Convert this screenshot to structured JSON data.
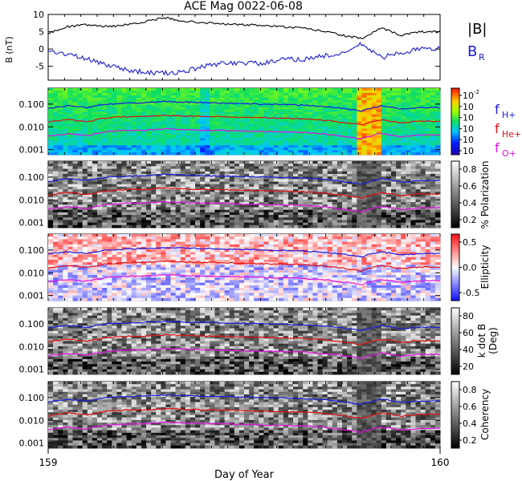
{
  "title": "ACE Mag 0022-06-08",
  "colors": {
    "black": "#000000",
    "blue": "#1a1adc",
    "red": "#e01010",
    "magenta": "#e010e0"
  },
  "chart_data": [
    {
      "type": "line",
      "panel": "magnetic-field",
      "ylabel": "B (nT)",
      "ylim": [
        -9,
        10
      ],
      "yticks": [
        10,
        5,
        0,
        -5
      ],
      "xlim": [
        159,
        160
      ],
      "grid": false,
      "legend": [
        {
          "label": "|B|",
          "color": "#000000"
        },
        {
          "label": "B",
          "subscript": "R",
          "color": "#1a1adc"
        }
      ],
      "series": [
        {
          "name": "|B|",
          "x": [
            159.0,
            159.05,
            159.1,
            159.15,
            159.2,
            159.25,
            159.3,
            159.35,
            159.4,
            159.45,
            159.5,
            159.55,
            159.6,
            159.65,
            159.7,
            159.75,
            159.8,
            159.85,
            159.9,
            159.95,
            160.0
          ],
          "values": [
            4.5,
            6.5,
            7.0,
            6.5,
            7.0,
            8.0,
            9.0,
            8.0,
            7.6,
            7.2,
            7.0,
            6.8,
            6.4,
            6.0,
            5.2,
            4.0,
            3.0,
            6.0,
            4.0,
            5.0,
            5.0
          ]
        },
        {
          "name": "B_R",
          "x": [
            159.0,
            159.05,
            159.1,
            159.15,
            159.2,
            159.25,
            159.3,
            159.35,
            159.4,
            159.45,
            159.5,
            159.55,
            159.6,
            159.65,
            159.7,
            159.75,
            159.8,
            159.85,
            159.9,
            159.95,
            160.0
          ],
          "values": [
            -0.5,
            -1.5,
            -3.0,
            -4.5,
            -6.0,
            -6.8,
            -7.0,
            -6.5,
            -5.0,
            -4.0,
            -4.0,
            -4.2,
            -3.0,
            -3.0,
            -2.0,
            -1.5,
            1.5,
            -2.5,
            -1.0,
            0.0,
            0.0
          ]
        }
      ]
    },
    {
      "type": "heatmap",
      "panel": "power",
      "yscale": "log",
      "ylim": [
        0.0006,
        0.5
      ],
      "yticks": [
        "0.100",
        "0.010",
        "0.001"
      ],
      "colorbar_ticks": [
        "10",
        "10",
        "10",
        "10",
        "10",
        "10"
      ],
      "colorbar_top_label": "10",
      "colorbar_exp": "-2",
      "colormap": "rainbow",
      "legend": [
        {
          "label": "f",
          "subscript": "H+",
          "color": "#1a1adc"
        },
        {
          "label": "f",
          "subscript": "He+",
          "color": "#e01010"
        },
        {
          "label": "f",
          "subscript": "O+",
          "color": "#e010e0"
        }
      ]
    },
    {
      "type": "heatmap",
      "panel": "polarization",
      "yscale": "log",
      "yticks": [
        "0.100",
        "0.010",
        "0.001"
      ],
      "colorbar_label": "% Polarization",
      "colorbar_ticks": [
        "0.8",
        "0.6",
        "0.4",
        "0.2"
      ],
      "colormap": "gray"
    },
    {
      "type": "heatmap",
      "panel": "ellipticity",
      "yscale": "log",
      "yticks": [
        "0.100",
        "0.010",
        "0.001"
      ],
      "colorbar_label": "Ellipticity",
      "colorbar_ticks": [
        "0.5",
        "0.0",
        "-0.5"
      ],
      "colormap": "blue-white-red"
    },
    {
      "type": "heatmap",
      "panel": "wave-normal-angle",
      "yscale": "log",
      "yticks": [
        "0.100",
        "0.010",
        "0.001"
      ],
      "colorbar_label": "k dot B (Deg)",
      "colorbar_ticks": [
        "80",
        "60",
        "40",
        "20"
      ],
      "colormap": "gray"
    },
    {
      "type": "heatmap",
      "panel": "coherency",
      "yscale": "log",
      "yticks": [
        "0.100",
        "0.010",
        "0.001"
      ],
      "colorbar_label": "Coherency",
      "colorbar_ticks": [
        "0.8",
        "0.6",
        "0.4",
        "0.2"
      ],
      "colormap": "gray"
    }
  ],
  "frequency_traces": {
    "x": [
      159.0,
      159.05,
      159.1,
      159.15,
      159.2,
      159.25,
      159.3,
      159.35,
      159.4,
      159.45,
      159.5,
      159.55,
      159.6,
      159.65,
      159.7,
      159.75,
      159.8,
      159.85,
      159.9,
      159.95,
      160.0
    ],
    "f_H": [
      0.065,
      0.085,
      0.07,
      0.1,
      0.11,
      0.115,
      0.13,
      0.12,
      0.115,
      0.11,
      0.105,
      0.1,
      0.095,
      0.09,
      0.08,
      0.065,
      0.05,
      0.085,
      0.06,
      0.07,
      0.07
    ],
    "f_He": [
      0.016,
      0.021,
      0.017,
      0.025,
      0.028,
      0.029,
      0.033,
      0.03,
      0.029,
      0.028,
      0.026,
      0.025,
      0.024,
      0.023,
      0.02,
      0.016,
      0.012,
      0.021,
      0.015,
      0.018,
      0.018
    ],
    "f_O": [
      0.004,
      0.005,
      0.0042,
      0.0062,
      0.007,
      0.0072,
      0.0082,
      0.0075,
      0.0072,
      0.007,
      0.0065,
      0.0062,
      0.006,
      0.0057,
      0.005,
      0.004,
      0.003,
      0.0052,
      0.0037,
      0.0045,
      0.0045
    ]
  },
  "x_axis": {
    "label": "Day of Year",
    "tick_labels": [
      "159",
      "160"
    ]
  }
}
